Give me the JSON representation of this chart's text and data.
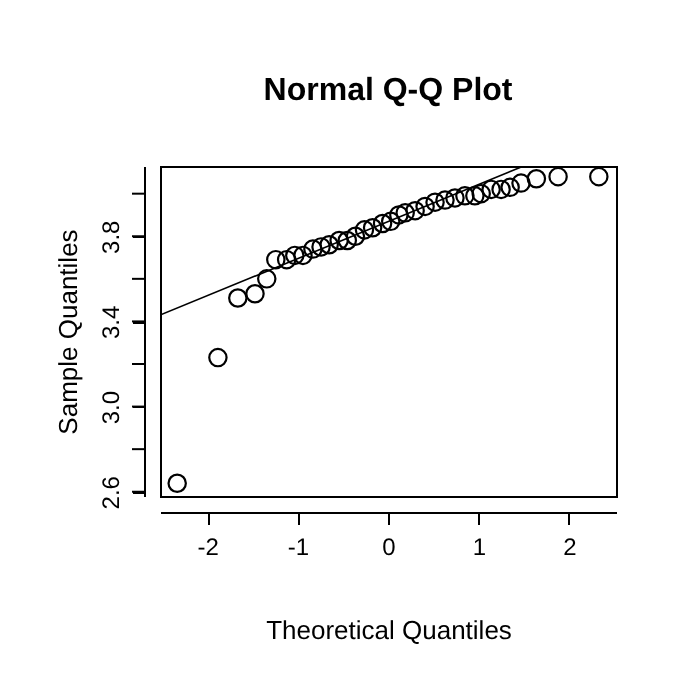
{
  "chart_data": {
    "type": "scatter",
    "title": "Normal Q-Q Plot",
    "xlabel": "Theoretical Quantiles",
    "ylabel": "Sample Quantiles",
    "xlim": [
      -2.52,
      2.52
    ],
    "xticks": [
      -2,
      -1,
      0,
      1,
      2
    ],
    "ylim": [
      2.58,
      4.13
    ],
    "yticks": [
      2.6,
      {
        "value": 2.8,
        "label": null
      },
      {
        "value": 3.0,
        "label": "3.0"
      },
      {
        "value": 3.2,
        "label": null
      },
      3.4,
      {
        "value": 3.6,
        "label": null
      },
      3.8,
      {
        "value": 4.0,
        "label": null
      }
    ],
    "grid": false,
    "marker": "circle",
    "series": [
      {
        "color": "#000000",
        "x": [
          -2.33,
          -1.88,
          -1.66,
          -1.47,
          -1.34,
          -1.24,
          -1.12,
          -1.03,
          -0.94,
          -0.83,
          -0.74,
          -0.65,
          -0.54,
          -0.45,
          -0.36,
          -0.26,
          -0.17,
          -0.06,
          0.03,
          0.12,
          0.19,
          0.3,
          0.41,
          0.52,
          0.63,
          0.74,
          0.85,
          0.96,
          1.03,
          1.14,
          1.25,
          1.35,
          1.47,
          1.64,
          1.88,
          2.33
        ],
        "values": [
          2.64,
          3.23,
          3.51,
          3.53,
          3.6,
          3.69,
          3.69,
          3.71,
          3.71,
          3.74,
          3.75,
          3.76,
          3.78,
          3.78,
          3.8,
          3.83,
          3.84,
          3.86,
          3.87,
          3.9,
          3.91,
          3.92,
          3.94,
          3.96,
          3.97,
          3.98,
          3.99,
          3.99,
          4.0,
          4.02,
          4.02,
          4.03,
          4.05,
          4.07,
          4.08,
          4.08
        ]
      },
      {
        "type": "line",
        "color": "#000000",
        "line_style": "solid",
        "marker": "none",
        "x": [
          -2.52,
          1.5
        ],
        "values": [
          3.43,
          4.13
        ]
      }
    ]
  }
}
